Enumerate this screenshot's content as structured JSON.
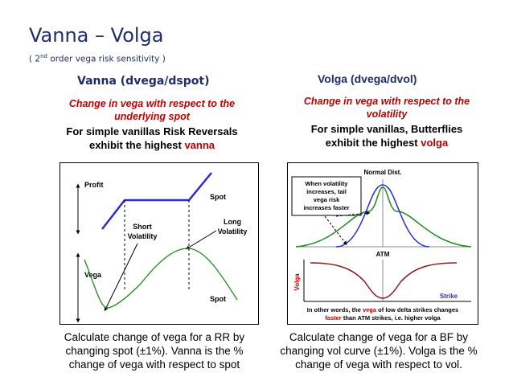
{
  "title": "Vanna – Volga",
  "subtitle": {
    "pre": "( 2",
    "sup": "nd",
    "post": " order vega risk sensitivity )"
  },
  "vanna": {
    "heading": "Vanna (dvega/dspot)",
    "desc_red_1": "Change in vega with respect to the",
    "desc_red_2": "underlying spot",
    "desc_black_1": "For simple vanillas Risk Reversals",
    "desc_black_2": "exhibit the highest ",
    "desc_black_highlight": "vanna",
    "chart": {
      "profit_label": "Profit",
      "spot_label_top": "Spot",
      "short_vol_1": "Short",
      "short_vol_2": "Volatility",
      "long_vol_1": "Long",
      "long_vol_2": "Volatility",
      "vega_label": "Vega",
      "spot_label_bottom": "Spot"
    },
    "caption_1": "Calculate change of vega for a RR by",
    "caption_2": "changing spot (±1%). Vanna is the %",
    "caption_3": "change of vega with respect to spot"
  },
  "volga": {
    "heading": "Volga (dvega/dvol)",
    "desc_red_1": "Change in vega with respect to the",
    "desc_red_2": "volatility",
    "desc_black_1": "For simple vanillas, Butterflies",
    "desc_black_2": "exhibit the highest ",
    "desc_black_highlight": "volga",
    "chart": {
      "normal_dist": "Normal Dist.",
      "note_1": "When volatility",
      "note_2": "increases, tail",
      "note_3": "vega risk",
      "note_4": "increases faster",
      "atm": "ATM",
      "volga_axis": "Volga",
      "strike": "Strike",
      "footer_1_pre": "In other words, the ",
      "footer_1_hl": "vega",
      "footer_1_post": " of low delta strikes changes",
      "footer_2_hl": "faster",
      "footer_2_post": " than ATM strikes, i.e. higher volga"
    },
    "caption_1": "Calculate change of vega for a BF by",
    "caption_2": "changing vol curve (±1%). Volga is the %",
    "caption_3": "change of vega with respect to vol."
  },
  "colors": {
    "navy": "#1f2d6e",
    "red": "#c00000",
    "blue": "#2b2bd6",
    "green": "#1d8a1d",
    "brown": "#8b1a1a"
  }
}
